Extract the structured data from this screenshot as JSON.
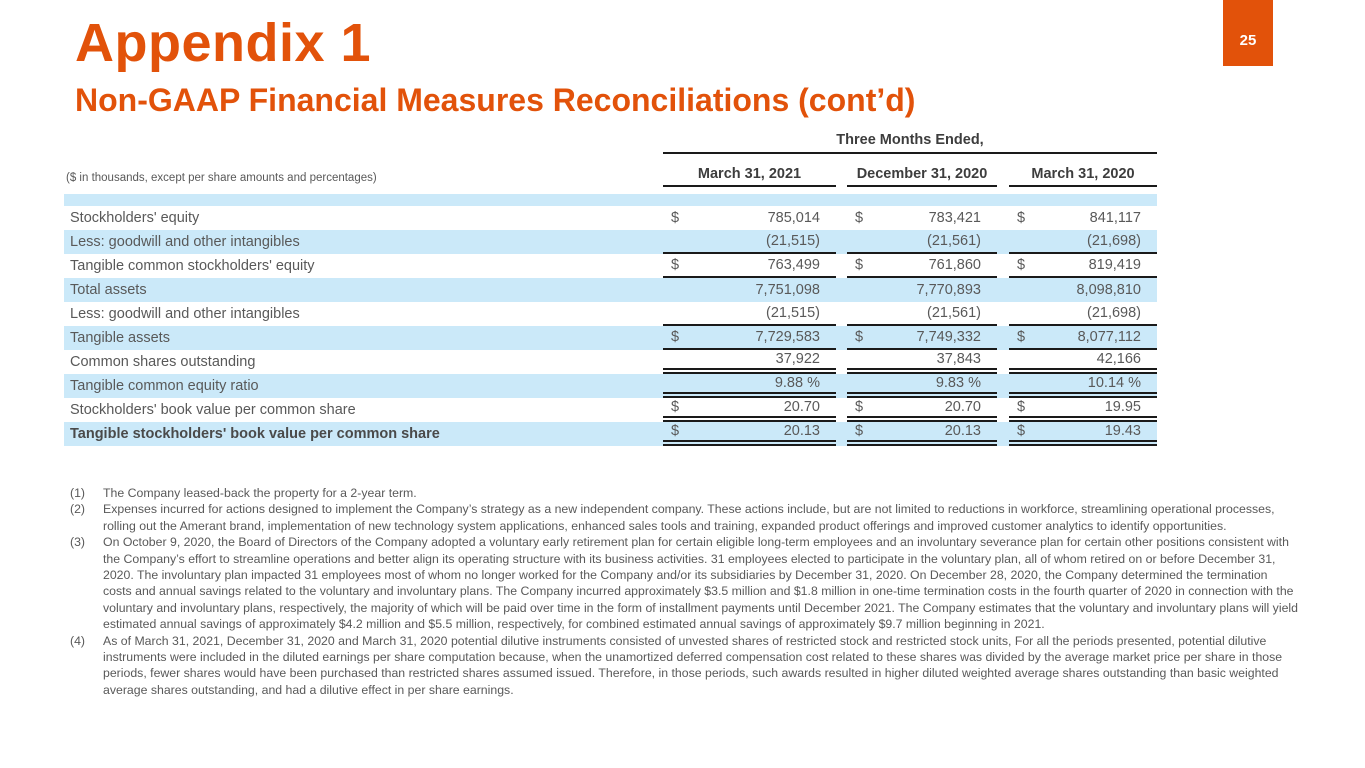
{
  "page": {
    "badge": "25",
    "title": "Appendix 1",
    "subtitle": "Non-GAAP Financial Measures Reconciliations (cont’d)"
  },
  "colors": {
    "accent_orange": "#E2520A",
    "row_highlight_blue": "#CBE9F9",
    "text_gray": "#595959",
    "rule_dark": "#1A1A1A"
  },
  "table": {
    "units_note": "($ in thousands, except per share amounts and percentages)",
    "period_header": "Three Months Ended,",
    "columns": [
      "March 31, 2021",
      "December 31, 2020",
      "March 31, 2020"
    ],
    "rows": [
      {
        "label": "Stockholders' equity",
        "dollar": true,
        "values": [
          "785,014",
          "783,421",
          "841,117"
        ],
        "shade": false,
        "bold": false,
        "border": "none"
      },
      {
        "label": "Less: goodwill and other intangibles",
        "dollar": false,
        "values": [
          "(21,515)",
          "(21,561)",
          "(21,698)"
        ],
        "shade": true,
        "bold": false,
        "border": "single"
      },
      {
        "label": "Tangible common stockholders' equity",
        "dollar": true,
        "values": [
          "763,499",
          "761,860",
          "819,419"
        ],
        "shade": false,
        "bold": false,
        "border": "single"
      },
      {
        "label": "Total assets",
        "dollar": false,
        "values": [
          "7,751,098",
          "7,770,893",
          "8,098,810"
        ],
        "shade": true,
        "bold": false,
        "border": "none"
      },
      {
        "label": "Less: goodwill and other intangibles",
        "dollar": false,
        "values": [
          "(21,515)",
          "(21,561)",
          "(21,698)"
        ],
        "shade": false,
        "bold": false,
        "border": "single"
      },
      {
        "label": "Tangible assets",
        "dollar": true,
        "values": [
          "7,729,583",
          "7,749,332",
          "8,077,112"
        ],
        "shade": true,
        "bold": false,
        "border": "single"
      },
      {
        "label": "Common shares outstanding",
        "dollar": false,
        "values": [
          "37,922",
          "37,843",
          "42,166"
        ],
        "shade": false,
        "bold": false,
        "border": "double"
      },
      {
        "label": "Tangible common equity ratio",
        "dollar": false,
        "values": [
          "9.88 %",
          "9.83 %",
          "10.14 %"
        ],
        "shade": true,
        "bold": false,
        "border": "double"
      },
      {
        "label": "Stockholders' book value per common share",
        "dollar": true,
        "values": [
          "20.70",
          "20.70",
          "19.95"
        ],
        "shade": false,
        "bold": false,
        "border": "double"
      },
      {
        "label": "Tangible stockholders' book value per common share",
        "dollar": true,
        "values": [
          "20.13",
          "20.13",
          "19.43"
        ],
        "shade": true,
        "bold": true,
        "border": "double"
      }
    ]
  },
  "footnotes": [
    {
      "marker": "(1)",
      "text": "The Company leased-back the property for a 2-year term."
    },
    {
      "marker": "(2)",
      "text": "Expenses incurred for actions designed to implement the Company’s strategy as a new independent company. These actions include, but are not limited to reductions in workforce, streamlining operational processes, rolling out the Amerant brand, implementation of new technology system applications, enhanced sales tools and training, expanded product offerings and improved customer analytics to identify opportunities."
    },
    {
      "marker": "(3)",
      "text": "On October 9, 2020, the Board of Directors of the Company adopted a voluntary early retirement plan for certain eligible long-term employees and an involuntary severance plan for certain other positions consistent with the Company’s effort to streamline operations and better align its operating structure with its business activities. 31 employees elected to participate in the voluntary plan, all of whom retired on or before December 31, 2020. The involuntary plan impacted 31 employees most of whom no longer worked for the Company and/or its subsidiaries by December 31, 2020. On December 28, 2020, the Company determined the termination costs and annual savings related to the voluntary and involuntary plans. The Company incurred approximately $3.5 million and $1.8 million in one-time termination costs in the fourth quarter of 2020 in connection with the voluntary and involuntary plans, respectively, the majority of which will be paid over time in the form of installment payments until December 2021. The Company estimates that the voluntary and involuntary plans will yield estimated annual savings of approximately $4.2 million and $5.5 million, respectively, for combined estimated annual savings of approximately $9.7 million beginning in 2021."
    },
    {
      "marker": "(4)",
      "text": "As of March 31, 2021, December 31, 2020 and March 31, 2020 potential dilutive instruments consisted of unvested shares of restricted stock and restricted stock units,  For all the periods presented, potential dilutive instruments were included in the diluted earnings per share computation because, when the unamortized deferred compensation cost related to these shares was divided by the average market price per share in those periods, fewer shares would have been purchased than restricted shares assumed issued. Therefore, in those periods, such awards resulted in higher diluted weighted average shares outstanding than basic weighted average shares outstanding, and had a dilutive effect in per share earnings."
    }
  ]
}
